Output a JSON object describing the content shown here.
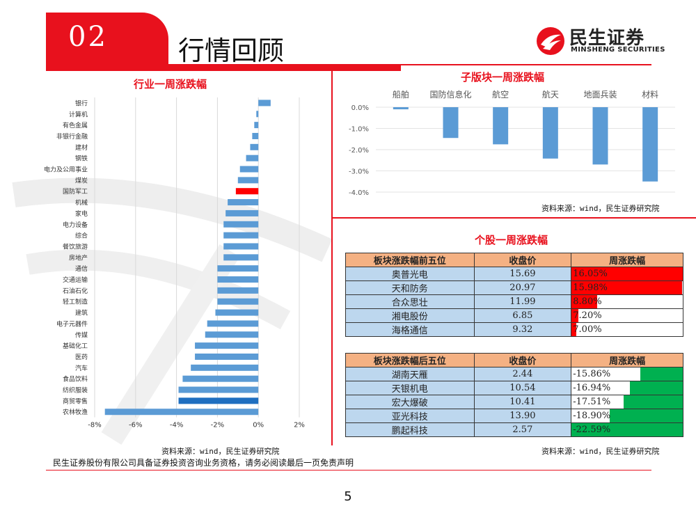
{
  "header": {
    "section_number": "02",
    "title": "行情回顾"
  },
  "logo": {
    "name_cn": "民生证券",
    "name_en": "MINSHENG SECURITIES"
  },
  "colors": {
    "brand_red": "#e8111d",
    "bar_blue": "#5b9bd5",
    "bar_highlight_red": "#ff0000",
    "bar_highlight_blue": "#1f6fc0",
    "gain_red": "#ff0000",
    "loss_green": "#00b050",
    "header_orange": "#f4b183",
    "cell_blue": "#bdd7ee"
  },
  "left_panel": {
    "title": "行业一周涨跌幅",
    "source": "资料来源：wind，民生证券研究院"
  },
  "subsector_panel": {
    "title": "子版块一周涨跌幅",
    "source": "资料来源：wind，民生证券研究院"
  },
  "stock_panel": {
    "title": "个股一周涨跌幅",
    "source": "资料来源：wind，民生证券研究院"
  },
  "chart_data": [
    {
      "type": "bar",
      "orientation": "horizontal",
      "title": "行业一周涨跌幅",
      "categories": [
        "银行",
        "计算机",
        "有色金属",
        "非银行金融",
        "建材",
        "钢铁",
        "电力及公用事业",
        "煤炭",
        "国防军工",
        "机械",
        "家电",
        "电力设备",
        "综合",
        "餐饮旅游",
        "房地产",
        "通信",
        "交通运输",
        "石油石化",
        "轻工制造",
        "建筑",
        "电子元器件",
        "传媒",
        "基础化工",
        "医药",
        "汽车",
        "食品饮料",
        "纺织服装",
        "商贸零售",
        "农林牧渔"
      ],
      "values": [
        0.6,
        -0.1,
        -0.2,
        -0.3,
        -0.4,
        -0.6,
        -0.9,
        -1.0,
        -1.1,
        -1.5,
        -1.6,
        -1.7,
        -1.7,
        -1.7,
        -1.7,
        -2.0,
        -2.0,
        -2.0,
        -2.0,
        -2.1,
        -2.5,
        -2.6,
        -3.1,
        -3.1,
        -3.3,
        -3.7,
        -3.9,
        -3.9,
        -7.5
      ],
      "highlight": {
        "国防军工": "#ff0000",
        "商贸零售": "#1f6fc0"
      },
      "xlim": [
        -8,
        2
      ],
      "xticks": [
        "-8%",
        "-6%",
        "-4%",
        "-2%",
        "0%",
        "2%"
      ],
      "xtick_values": [
        -8,
        -6,
        -4,
        -2,
        0,
        2
      ],
      "grid": true
    },
    {
      "type": "bar",
      "title": "子版块一周涨跌幅",
      "categories": [
        "船舶",
        "国防信息化",
        "航空",
        "航天",
        "地面兵装",
        "材料"
      ],
      "values": [
        -0.1,
        -1.45,
        -1.75,
        -2.42,
        -2.7,
        -3.5
      ],
      "ylim": [
        -4,
        0
      ],
      "yticks": [
        "0.0%",
        "-1.0%",
        "-2.0%",
        "-3.0%",
        "-4.0%"
      ],
      "ytick_values": [
        0,
        -1,
        -2,
        -3,
        -4
      ],
      "grid": true
    },
    {
      "type": "table",
      "title": "个股一周涨跌幅",
      "tables": [
        {
          "headers": [
            "板块涨跌幅前五位",
            "收盘价",
            "周涨跌幅"
          ],
          "rows": [
            {
              "name": "奥普光电",
              "close": "15.69",
              "change_label": "16.05%",
              "change": 16.05
            },
            {
              "name": "天和防务",
              "close": "20.97",
              "change_label": "15.98%",
              "change": 15.98
            },
            {
              "name": "合众思壮",
              "close": "11.99",
              "change_label": "8.80%",
              "change": 8.8
            },
            {
              "name": "湘电股份",
              "close": "6.85",
              "change_label": "7.20%",
              "change": 7.2
            },
            {
              "name": "海格通信",
              "close": "9.32",
              "change_label": "7.00%",
              "change": 7.0
            }
          ]
        },
        {
          "headers": [
            "板块涨跌幅后五位",
            "收盘价",
            "周涨跌幅"
          ],
          "rows": [
            {
              "name": "湖南天雁",
              "close": "2.44",
              "change_label": "-15.86%",
              "change": -15.86
            },
            {
              "name": "天银机电",
              "close": "10.54",
              "change_label": "-16.94%",
              "change": -16.94
            },
            {
              "name": "宏大爆破",
              "close": "10.41",
              "change_label": "-17.51%",
              "change": -17.51
            },
            {
              "name": "亚光科技",
              "close": "13.90",
              "change_label": "-18.90%",
              "change": -18.9
            },
            {
              "name": "鹏起科技",
              "close": "2.57",
              "change_label": "-22.59%",
              "change": -22.59
            }
          ]
        }
      ]
    }
  ],
  "footer": {
    "note": "民生证券股份有限公司具备证券投资咨询业务资格，请务必阅读最后一页免责声明",
    "page_number": "5"
  }
}
